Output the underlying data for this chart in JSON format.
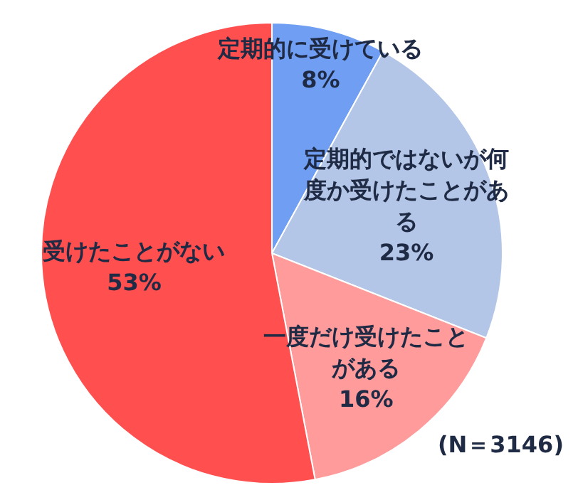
{
  "chart_data": {
    "type": "pie",
    "categories": [
      "定期的に受けている",
      "定期的ではないが何度か受けたことがある",
      "一度だけ受けたことがある",
      "受けたことがない"
    ],
    "values": [
      8,
      23,
      16,
      53
    ],
    "colors": [
      "#6f9ef2",
      "#b4c6e7",
      "#ff9b9b",
      "#ff4f4f"
    ],
    "value_labels": [
      "8%",
      "23%",
      "16%",
      "53%"
    ],
    "annotations": [
      "(N＝3146)"
    ]
  }
}
